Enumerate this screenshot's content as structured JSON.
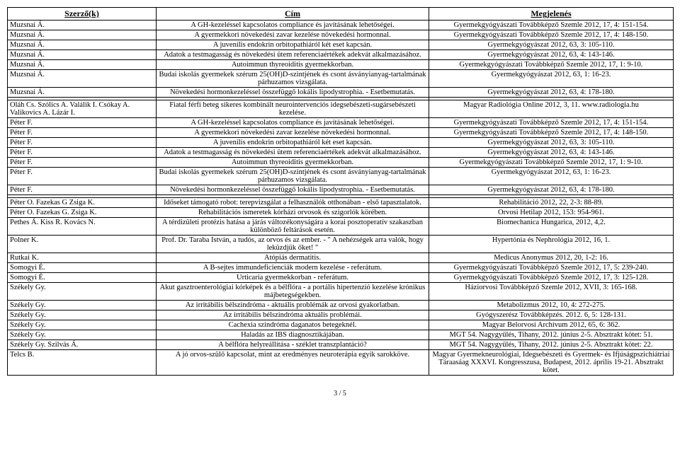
{
  "headers": {
    "a": "Szerző(k)",
    "b": "Cím",
    "c": "Megjelenés"
  },
  "rows": [
    {
      "a": "Muzsnai Á.",
      "b": "A GH-kezeléssel kapcsolatos compliance és javításának lehetőségei.",
      "c": "Gyermekgyógyászati Továbbképző Szemle 2012, 17, 4: 151-154."
    },
    {
      "a": "Muzsnai Á.",
      "b": "A gyermekkori növekedési zavar kezelése növekedési hormonnal.",
      "c": "Gyermekgyógyászati Továbbképző Szemle 2012, 17, 4: 148-150."
    },
    {
      "a": "Muzsnai Á.",
      "b": "A juvenilis endokrin orbitopathiáról két eset kapcsán.",
      "c": "Gyermekgyógyászat 2012, 63, 3: 105-110."
    },
    {
      "a": "Muzsnai Á.",
      "b": "Adatok a testmagasság és növekedési ütem referenciaértékek adekvát alkalmazásához.",
      "c": "Gyermekgyógyászat 2012, 63, 4: 143-146."
    },
    {
      "a": "Muzsnai Á.",
      "b": "Autoimmun thyreoiditis gyermekkorban.",
      "c": "Gyermekgyógyászati Továbbképző Szemle 2012, 17, 1: 9-10."
    },
    {
      "a": "Muzsnai Á.",
      "b": "Budai iskolás gyermekek szérum 25(OH)D-szintjének és csont ásványianyag-tartalmának párhuzamos vizsgálata.",
      "c": "Gyermekgyógyászat 2012, 63, 1: 16-23."
    },
    {
      "a": "Muzsnai Á.",
      "b": "Növekedési hormonkezeléssel összefüggő lokális lipodystrophia. - Esetbemutatás.",
      "c": "Gyermekgyógyászat 2012, 63, 4: 178-180."
    },
    {
      "sp": true
    },
    {
      "a": "Oláh Cs. Szólics A. Valálik I. Csókay A. Valikovics A. Lázár I.",
      "b": "Fiatal férfi beteg sikeres kombinált neurointervenciós idegsebészeti-sugársebészeti kezelése.",
      "c": "Magyar Radiológia Online 2012, 3, 11. www.radiologia.hu"
    },
    {
      "a": "Péter F.",
      "b": "A GH-kezeléssel kapcsolatos compliance és javításának lehetőségei.",
      "c": "Gyermekgyógyászati Továbbképző Szemle 2012, 17, 4: 151-154."
    },
    {
      "a": "Péter F.",
      "b": "A gyermekkori növekedési zavar kezelése növekedési hormonnal.",
      "c": "Gyermekgyógyászati Továbbképző Szemle 2012, 17, 4: 148-150."
    },
    {
      "a": "Péter F.",
      "b": "A juvenilis endokrin orbitopathiáról két eset kapcsán.",
      "c": "Gyermekgyógyászat 2012, 63, 3: 105-110."
    },
    {
      "a": "Péter F.",
      "b": "Adatok a testmagasság és növekedési ütem referenciaértékek adekvát alkalmazásához.",
      "c": "Gyermekgyógyászat 2012, 63, 4: 143-146."
    },
    {
      "a": "Péter F.",
      "b": "Autoimmun thyreoiditis gyermekkorban.",
      "c": "Gyermekgyógyászati Továbbképző Szemle 2012, 17, 1: 9-10."
    },
    {
      "a": "Péter F.",
      "b": "Budai iskolás gyermekek szérum 25(OH)D-szintjének és csont ásványianyag-tartalmának párhuzamos vizsgálata.",
      "c": "Gyermekgyógyászat 2012, 63, 1: 16-23."
    },
    {
      "a": "Péter F.",
      "b": "Növekedési hormonkezeléssel összefüggő lokális lipodystrophia. - Esetbemutatás.",
      "c": "Gyermekgyógyászat 2012, 63, 4: 178-180."
    },
    {
      "sp": true
    },
    {
      "a": "Péter O. Fazekas G Zsiga K.",
      "b": "Időseket támogató robot: terepvizsgálat a felhasználók otthonában - első tapasztalatok.",
      "c": "Rehabilitáció 2012, 22, 2-3: 88-89."
    },
    {
      "a": "Péter O. Fazekas G. Zsiga K.",
      "b": "Rehabilitációs ismeretek kórházi orvosok és szigorlók körében.",
      "c": "Orvosi Hetilap 2012, 153: 954-961."
    },
    {
      "a": "Pethes Á. Kiss R. Kovács N.",
      "b": "A térdizületi protézis hatása a járás változékonyságára a korai posztoperatív szakaszban különböző feltárások esetén.",
      "c": "Biomechanica Hungarica, 2012, 4,2."
    },
    {
      "a": "Polner K.",
      "b": "Prof. Dr. Taraba István, a tudós, az orvos és az ember. - \" A nehézségek arra valók, hogy leküzdjük őket! \"",
      "c": "Hypertónia és Nephrológia 2012, 16, 1."
    },
    {
      "a": "Rutkai K.",
      "b": "Atópiás dermatitis.",
      "c": "Medicus Anonymus 2012, 20, 1-2: 16."
    },
    {
      "a": "Somogyi É.",
      "b": "A B-sejtes immundeficienciák modern kezelése - referátum.",
      "c": "Gyermekgyógyászati Továbbképző Szemle 2012, 17, 5: 239-240."
    },
    {
      "a": "Somogyi É.",
      "b": "Urticaria gyermekkorban - referátum.",
      "c": "Gyermekgyógyászati Továbbképző Szemle 2012, 17, 3: 125-128."
    },
    {
      "a": "Székely Gy.",
      "b": "Akut gasztroenterológiai kórképek és a bélflóra - a portális hipertenzió kezelése krónikus májbetegségekben.",
      "c": "Háziorvosi Továbbképző Szemle 2012, XVII, 3: 165-168."
    },
    {
      "a": "Székely Gy.",
      "b": "Az irritábilis bélszindróma - aktuális problémák az orvosi gyakorlatban.",
      "c": "Metabolizmus 2012, 10, 4: 272-275."
    },
    {
      "a": "Székely Gy.",
      "b": "Az irritábilis bélszindróma aktuális problémái.",
      "c": "Gyógyszerész Továbbképzés. 2012.  6, 5: 128-131."
    },
    {
      "a": "Székely Gy.",
      "b": "Cachexia szindróma daganatos betegeknél.",
      "c": "Magyar Belorvosi Archívum 2012, 65, 6: 362."
    },
    {
      "a": "Székely Gy.",
      "b": "Haladás az  IBS diagnosztikájában.",
      "c": "MGT 54. Nagygyűlés, Tihany, 2012.  június 2-5. Absztrakt kötet: 51."
    },
    {
      "a": "Székely Gy. Szilvás Á.",
      "b": "A bélflóra helyreállítása - széklet transzplantáció?",
      "c": "MGT 54. Nagygyűlés, Tihany, 2012.  június 2-5. Absztrakt kötet: 22."
    },
    {
      "a": "Telcs B.",
      "b": "A jó orvos-szülő kapcsolat, mint az eredményes neuroterápia egyik sarokköve.",
      "c": "Magyar Gyermekneurológiai, Idegsebészeti és Gyermek- és Ifjúságpszichiátriai Táraasáag XXXVI.  Kongresszusa, Budapest, 2012. április 19-21. Absztrakt kötet."
    }
  ],
  "page": "3 / 5"
}
